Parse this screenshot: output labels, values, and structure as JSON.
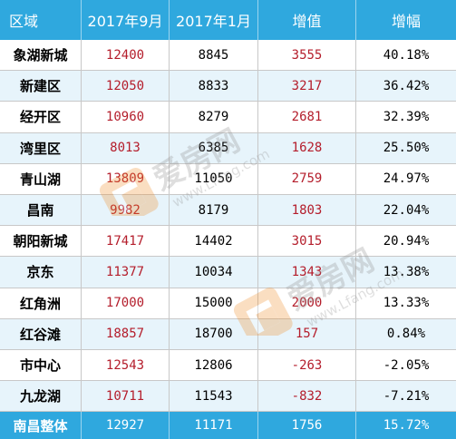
{
  "table": {
    "headers": [
      "区域",
      "2017年9月",
      "2017年1月",
      "增值",
      "增幅"
    ],
    "rows": [
      {
        "area": "象湖新城",
        "sep": "12400",
        "jan": "8845",
        "diff": "3555",
        "pct": "40.18%"
      },
      {
        "area": "新建区",
        "sep": "12050",
        "jan": "8833",
        "diff": "3217",
        "pct": "36.42%"
      },
      {
        "area": "经开区",
        "sep": "10960",
        "jan": "8279",
        "diff": "2681",
        "pct": "32.39%"
      },
      {
        "area": "湾里区",
        "sep": "8013",
        "jan": "6385",
        "diff": "1628",
        "pct": "25.50%"
      },
      {
        "area": "青山湖",
        "sep": "13809",
        "jan": "11050",
        "diff": "2759",
        "pct": "24.97%"
      },
      {
        "area": "昌南",
        "sep": "9982",
        "jan": "8179",
        "diff": "1803",
        "pct": "22.04%"
      },
      {
        "area": "朝阳新城",
        "sep": "17417",
        "jan": "14402",
        "diff": "3015",
        "pct": "20.94%"
      },
      {
        "area": "京东",
        "sep": "11377",
        "jan": "10034",
        "diff": "1343",
        "pct": "13.38%"
      },
      {
        "area": "红角洲",
        "sep": "17000",
        "jan": "15000",
        "diff": "2000",
        "pct": "13.33%"
      },
      {
        "area": "红谷滩",
        "sep": "18857",
        "jan": "18700",
        "diff": "157",
        "pct": "0.84%"
      },
      {
        "area": "市中心",
        "sep": "12543",
        "jan": "12806",
        "diff": "-263",
        "pct": "-2.05%"
      },
      {
        "area": "九龙湖",
        "sep": "10711",
        "jan": "11543",
        "diff": "-832",
        "pct": "-7.21%"
      }
    ],
    "total": {
      "area": "南昌整体",
      "sep": "12927",
      "jan": "11171",
      "diff": "1756",
      "pct": "15.72%"
    }
  },
  "watermark": {
    "brand": "爱房网",
    "url": "www.Lfang.com"
  },
  "colors": {
    "header_bg": "#2fa8de",
    "stripe_bg": "#e7f4fb",
    "value_red": "#b41d2b",
    "watermark_orange": "#f08a24",
    "watermark_gray": "#8c8c8c"
  }
}
